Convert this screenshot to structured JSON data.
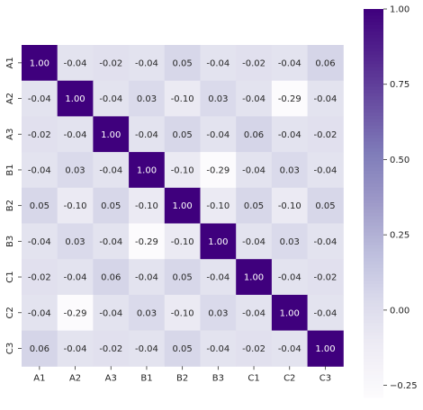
{
  "chart_data": {
    "type": "heatmap",
    "title": "",
    "xlabel": "",
    "ylabel": "",
    "x_categories": [
      "A1",
      "A2",
      "A3",
      "B1",
      "B2",
      "B3",
      "C1",
      "C2",
      "C3"
    ],
    "y_categories": [
      "A1",
      "A2",
      "A3",
      "B1",
      "B2",
      "B3",
      "C1",
      "C2",
      "C3"
    ],
    "values": [
      [
        1.0,
        -0.04,
        -0.02,
        -0.04,
        0.05,
        -0.04,
        -0.02,
        -0.04,
        0.06
      ],
      [
        -0.04,
        1.0,
        -0.04,
        0.03,
        -0.1,
        0.03,
        -0.04,
        -0.29,
        -0.04
      ],
      [
        -0.02,
        -0.04,
        1.0,
        -0.04,
        0.05,
        -0.04,
        0.06,
        -0.04,
        -0.02
      ],
      [
        -0.04,
        0.03,
        -0.04,
        1.0,
        -0.1,
        -0.29,
        -0.04,
        0.03,
        -0.04
      ],
      [
        0.05,
        -0.1,
        0.05,
        -0.1,
        1.0,
        -0.1,
        0.05,
        -0.1,
        0.05
      ],
      [
        -0.04,
        0.03,
        -0.04,
        -0.29,
        -0.1,
        1.0,
        -0.04,
        0.03,
        -0.04
      ],
      [
        -0.02,
        -0.04,
        0.06,
        -0.04,
        0.05,
        -0.04,
        1.0,
        -0.04,
        -0.02
      ],
      [
        -0.04,
        -0.29,
        -0.04,
        0.03,
        -0.1,
        0.03,
        -0.04,
        1.0,
        -0.04
      ],
      [
        0.06,
        -0.04,
        -0.02,
        -0.04,
        0.05,
        -0.04,
        -0.02,
        -0.04,
        1.0
      ]
    ],
    "annotations_format": "0.00",
    "colormap": "Purples",
    "colormap_stops": [
      "#fcfbfd",
      "#efedf5",
      "#dadaeb",
      "#bcbddc",
      "#9e9ac8",
      "#807dba",
      "#6a51a3",
      "#54278f",
      "#3f007d"
    ],
    "vmin": -0.29,
    "vmax": 1.0,
    "colorbar": {
      "range": [
        -0.29,
        1.0
      ],
      "tick_values": [
        -0.25,
        0.0,
        0.25,
        0.5,
        0.75,
        1.0
      ],
      "tick_labels": [
        "−0.25",
        "0.00",
        "0.25",
        "0.50",
        "0.75",
        "1.00"
      ]
    },
    "grid": false,
    "square": true
  }
}
